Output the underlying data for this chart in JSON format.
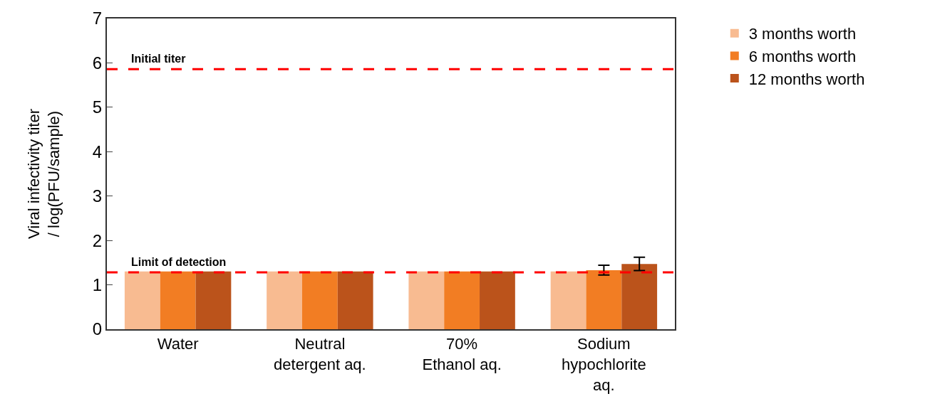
{
  "chart_data": {
    "type": "bar",
    "categories": [
      "Water",
      "Neutral\ndetergent aq.",
      "70%\nEthanol aq.",
      "Sodium\nhypochlorite\naq."
    ],
    "series": [
      {
        "name": "3 months worth",
        "color": "#f8bb91",
        "values": [
          1.3,
          1.3,
          1.3,
          1.3
        ]
      },
      {
        "name": "6 months worth",
        "color": "#f27d23",
        "values": [
          1.3,
          1.3,
          1.3,
          1.33
        ],
        "errors": [
          null,
          null,
          null,
          0.11
        ]
      },
      {
        "name": "12 months worth",
        "color": "#bb531b",
        "values": [
          1.3,
          1.3,
          1.3,
          1.47
        ],
        "errors": [
          null,
          null,
          null,
          0.15
        ]
      }
    ],
    "ylabel": "Viral infectivity titer\n/ log(PFU/sample)",
    "ylim": [
      0,
      7
    ],
    "yticks": [
      0,
      1,
      2,
      3,
      4,
      5,
      6,
      7
    ],
    "ref_lines": [
      {
        "axis": "y",
        "value": 5.86,
        "label": "Initial titer",
        "color": "#ff0000",
        "line_style": "dashed"
      },
      {
        "axis": "y",
        "value": 1.28,
        "label": "Limit of detection",
        "color": "#ff0000",
        "line_style": "dashed"
      }
    ],
    "legend": "top right"
  }
}
